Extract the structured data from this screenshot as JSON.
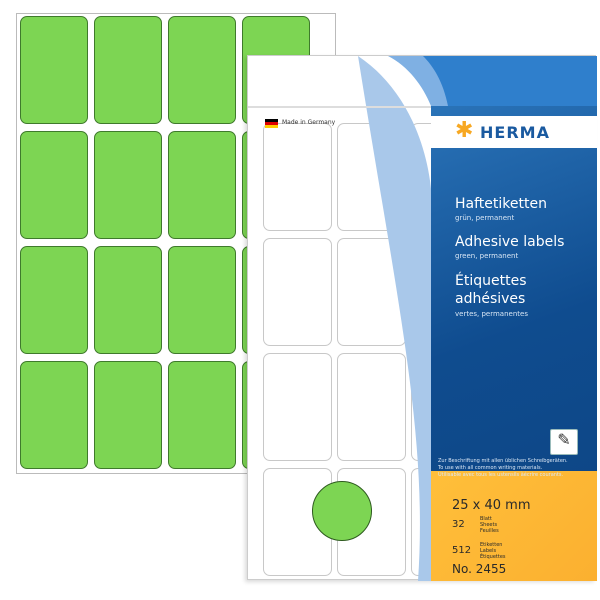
{
  "product": {
    "brand": "HERMA",
    "made_in": "Made in Germany",
    "titles": [
      {
        "title": "Haftetiketten",
        "subtitle": "grün, permanent"
      },
      {
        "title": "Adhesive labels",
        "subtitle": "green, permanent"
      },
      {
        "title": "Étiquettes adhésives",
        "subtitle": "vertes, permanentes"
      }
    ],
    "usage": [
      "Zur Beschriftung mit allen üblichen Schreibgeräten.",
      "To use with all common writing materials.",
      "Utilisable avec tous les ustensils àécrire courants."
    ],
    "size": "25 x 40 mm",
    "sheets_count": "32",
    "sheets_label": [
      "Blatt",
      "Sheets",
      "Feuilles"
    ],
    "labels_count": "512",
    "labels_label": [
      "Etiketten",
      "Labels",
      "Étiquettes"
    ],
    "article_no": "No. 2455",
    "colors": {
      "label_green": "#7dd553",
      "panel_blue": "#0f4c8f",
      "panel_orange": "#fbb030",
      "logo_star": "#f7a823"
    },
    "icons": [
      "germany-flag-icon",
      "pen-writing-icon",
      "herma-star-icon"
    ]
  }
}
